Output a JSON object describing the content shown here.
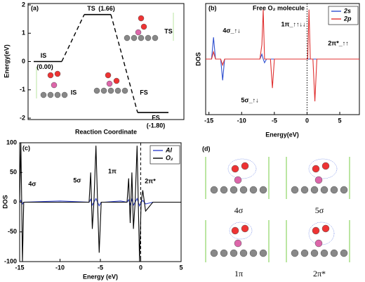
{
  "chart_data": [
    {
      "type": "energy_profile",
      "panel_label": "(a)",
      "xlabel": "Reaction Coordinate",
      "ylabel": "Energy(eV)",
      "categories": [
        "IS",
        "TS",
        "FS"
      ],
      "values": [
        0.0,
        1.66,
        -1.8
      ],
      "value_labels": [
        "(0.00)",
        "(1.66)",
        "(-1.80)"
      ],
      "inset_labels": [
        "IS",
        "TS",
        "FS"
      ],
      "color": "#000000",
      "ylim": [
        -2.05,
        2.05
      ],
      "yticks": [
        -2,
        -1,
        0,
        1,
        2
      ]
    },
    {
      "type": "line",
      "panel_label": "(b)",
      "title": "Free O₂ molecule",
      "xlabel": "Energy(eV)",
      "ylabel": "DOS",
      "x": [
        -15.5,
        -14.6,
        -14.3,
        -14.0,
        -13.2,
        -12.9,
        -12.6,
        -7.2,
        -6.9,
        -6.7,
        -6.5,
        -6.2,
        -5.6,
        -5.3,
        -5.0,
        -0.2,
        0.1,
        0.3,
        0.5,
        0.9,
        1.2,
        1.5,
        8
      ],
      "series": [
        {
          "name": "2s",
          "color": "#3050d0",
          "values": [
            0,
            0,
            90,
            0,
            0,
            -88,
            0,
            0,
            20,
            0,
            -15,
            0,
            0,
            0,
            0,
            0,
            0,
            0,
            0,
            0,
            0,
            0,
            0
          ]
        },
        {
          "name": "2p",
          "color": "#e03030",
          "values": [
            0,
            0,
            30,
            0,
            0,
            -25,
            0,
            0,
            60,
            205,
            0,
            0,
            0,
            -120,
            0,
            0,
            0,
            205,
            0,
            0,
            -175,
            0,
            0
          ]
        }
      ],
      "annotations": [
        "4σ_↑↓",
        "5σ_↑↓",
        "1π_↑↑↓↓",
        "2π*_↑↑"
      ],
      "reference_line": {
        "x": 0,
        "style": "dotted"
      },
      "xlim": [
        -15.5,
        8
      ],
      "ylim": [
        -230,
        230
      ],
      "xticks": [
        -15,
        -10,
        -5,
        0,
        5
      ],
      "legend": "upper right"
    },
    {
      "type": "line",
      "panel_label": "(c)",
      "xlabel": "Energy (eV)",
      "ylabel": "DOS",
      "x": [
        -15,
        -14.85,
        -14.75,
        -14.65,
        -14.5,
        -10,
        -6.4,
        -6.2,
        -6.0,
        -5.8,
        -5.55,
        -5.35,
        -5.15,
        -4.9,
        -4.5,
        -2.5,
        -1.7,
        -1.5,
        -1.3,
        -1.1,
        -0.9,
        -0.7,
        -0.45,
        -0.3,
        -0.15,
        0.05,
        0.25,
        0.6,
        1.5,
        5
      ],
      "series": [
        {
          "name": "Al",
          "color": "#3344cc",
          "values": [
            0,
            3,
            0,
            -3,
            0,
            2,
            0,
            5,
            -5,
            0,
            6,
            0,
            -6,
            0,
            0,
            2,
            0,
            4,
            -4,
            5,
            -5,
            0,
            6,
            0,
            -6,
            0,
            3,
            -3,
            0,
            0
          ]
        },
        {
          "name": "O₂",
          "color": "#000000",
          "values": [
            0,
            100,
            0,
            -100,
            0,
            0,
            0,
            50,
            -45,
            0,
            95,
            0,
            -85,
            0,
            0,
            0,
            0,
            40,
            -35,
            50,
            -45,
            0,
            95,
            0,
            -100,
            0,
            20,
            -15,
            0,
            0
          ]
        }
      ],
      "annotations": [
        "4σ",
        "5σ",
        "1π",
        "2π*"
      ],
      "reference_line": {
        "x": 0,
        "style": "dashed"
      },
      "xlim": [
        -15,
        5
      ],
      "ylim": [
        -100,
        100
      ],
      "xticks": [
        -15,
        -10,
        -5,
        0,
        5
      ],
      "yticks": [
        -100,
        -50,
        0,
        50,
        100
      ],
      "legend": "upper right"
    }
  ],
  "panel_d": {
    "panel_label": "(d)",
    "captions": [
      "4σ",
      "5σ",
      "1π",
      "2π*"
    ]
  }
}
